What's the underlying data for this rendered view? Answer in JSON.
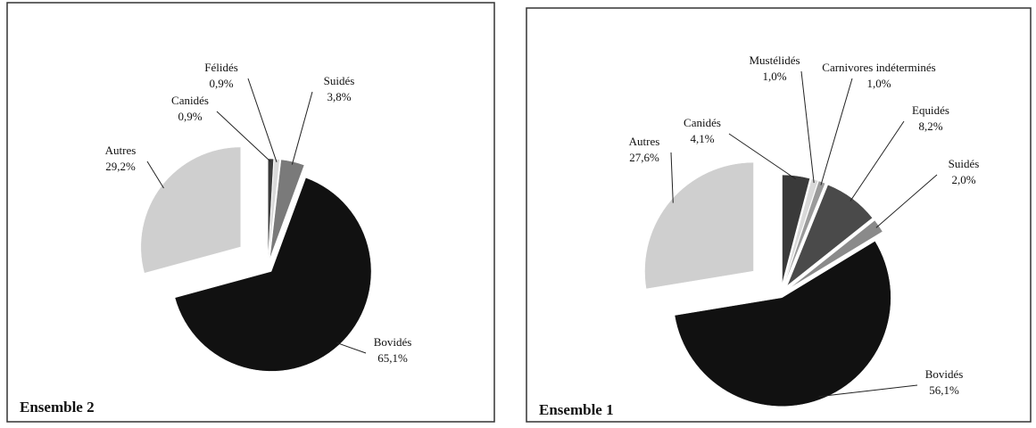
{
  "chart_data": [
    {
      "type": "pie",
      "title": "Ensemble 2",
      "categories": [
        "Canidés",
        "Félidés",
        "Suidés",
        "Bovidés",
        "Autres"
      ],
      "values": [
        0.9,
        0.9,
        3.8,
        65.1,
        29.2
      ],
      "value_labels": [
        "0,9%",
        "0,9%",
        "3,8%",
        "65,1%",
        "29,2%"
      ],
      "colors": [
        "#3a3a3a",
        "#d9d9d9",
        "#7a7a7a",
        "#111111",
        "#cfcfcf"
      ]
    },
    {
      "type": "pie",
      "title": "Ensemble 1",
      "categories": [
        "Canidés",
        "Mustélidés",
        "Carnivores indéterminés",
        "Equidés",
        "Suidés",
        "Bovidés",
        "Autres"
      ],
      "values": [
        4.1,
        1.0,
        1.0,
        8.2,
        2.0,
        56.1,
        27.6
      ],
      "value_labels": [
        "4,1%",
        "1,0%",
        "1,0%",
        "8,2%",
        "2,0%",
        "56,1%",
        "27,6%"
      ],
      "colors": [
        "#3a3a3a",
        "#d9d9d9",
        "#9a9a9a",
        "#4a4a4a",
        "#8a8a8a",
        "#111111",
        "#cfcfcf"
      ]
    }
  ]
}
